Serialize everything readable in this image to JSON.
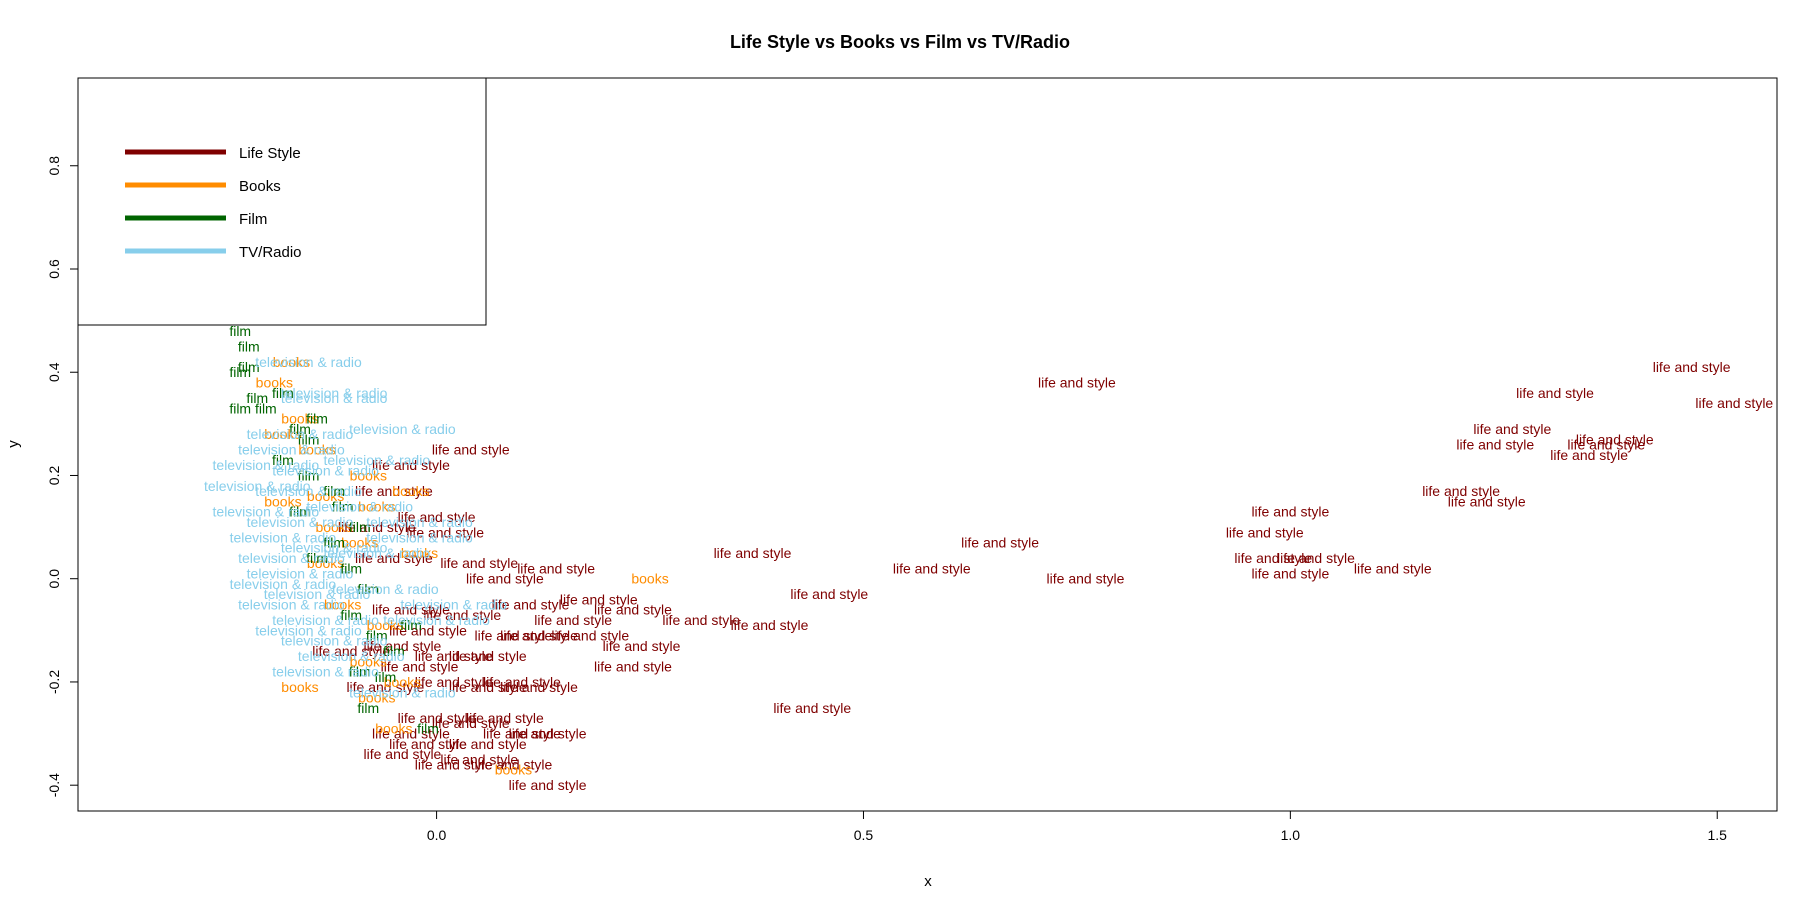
{
  "chart_data": {
    "type": "scatter",
    "title": "Life Style vs Books vs Film vs TV/Radio",
    "xlabel": "x",
    "ylabel": "y",
    "xlim": [
      -0.42,
      1.57
    ],
    "ylim": [
      -0.45,
      0.97
    ],
    "xticks": [
      0.0,
      0.5,
      1.0,
      1.5
    ],
    "yticks": [
      -0.4,
      -0.2,
      0.0,
      0.2,
      0.4,
      0.6,
      0.8
    ],
    "xtick_labels": [
      "0.0",
      "0.5",
      "1.0",
      "1.5"
    ],
    "ytick_labels": [
      "-0.4",
      "-0.2",
      "0.0",
      "0.2",
      "0.4",
      "0.6",
      "0.8"
    ],
    "grid": false,
    "legend": {
      "position": "top-left",
      "entries": [
        {
          "label": "Life Style",
          "color": "#7f0000"
        },
        {
          "label": "Books",
          "color": "#ff8c00"
        },
        {
          "label": "Film",
          "color": "#006400"
        },
        {
          "label": "TV/Radio",
          "color": "#87ceeb"
        }
      ]
    },
    "series": [
      {
        "name": "Life Style",
        "point_label": "life and style",
        "color": "#7f0000",
        "points": [
          [
            0.75,
            0.38
          ],
          [
            1.47,
            0.41
          ],
          [
            1.52,
            0.34
          ],
          [
            1.31,
            0.36
          ],
          [
            1.26,
            0.29
          ],
          [
            1.24,
            0.26
          ],
          [
            1.38,
            0.27
          ],
          [
            1.37,
            0.26
          ],
          [
            1.35,
            0.24
          ],
          [
            1.2,
            0.17
          ],
          [
            1.23,
            0.15
          ],
          [
            1.0,
            0.13
          ],
          [
            0.97,
            0.09
          ],
          [
            0.66,
            0.07
          ],
          [
            0.37,
            0.05
          ],
          [
            0.98,
            0.04
          ],
          [
            1.0,
            0.01
          ],
          [
            1.03,
            0.04
          ],
          [
            1.12,
            0.02
          ],
          [
            0.58,
            0.02
          ],
          [
            0.76,
            0.0
          ],
          [
            0.46,
            -0.03
          ],
          [
            0.39,
            -0.09
          ],
          [
            0.31,
            -0.08
          ],
          [
            0.24,
            -0.13
          ],
          [
            0.23,
            -0.17
          ],
          [
            0.44,
            -0.25
          ],
          [
            0.13,
            -0.4
          ],
          [
            0.04,
            0.25
          ],
          [
            -0.03,
            0.22
          ],
          [
            0.0,
            0.12
          ],
          [
            0.01,
            0.09
          ],
          [
            0.14,
            0.02
          ],
          [
            0.05,
            0.03
          ],
          [
            -0.05,
            0.04
          ],
          [
            0.08,
            0.0
          ],
          [
            0.11,
            -0.05
          ],
          [
            0.19,
            -0.04
          ],
          [
            0.23,
            -0.06
          ],
          [
            0.16,
            -0.08
          ],
          [
            0.12,
            -0.11
          ],
          [
            0.18,
            -0.11
          ],
          [
            0.09,
            -0.11
          ],
          [
            0.03,
            -0.07
          ],
          [
            -0.03,
            -0.06
          ],
          [
            -0.01,
            -0.1
          ],
          [
            0.06,
            -0.15
          ],
          [
            0.02,
            -0.15
          ],
          [
            -0.04,
            -0.13
          ],
          [
            0.1,
            -0.2
          ],
          [
            0.12,
            -0.21
          ],
          [
            0.06,
            -0.21
          ],
          [
            0.02,
            -0.2
          ],
          [
            -0.02,
            -0.17
          ],
          [
            -0.06,
            -0.21
          ],
          [
            0.08,
            -0.27
          ],
          [
            0.13,
            -0.3
          ],
          [
            0.1,
            -0.3
          ],
          [
            0.04,
            -0.28
          ],
          [
            0.0,
            -0.27
          ],
          [
            -0.03,
            -0.3
          ],
          [
            0.06,
            -0.32
          ],
          [
            -0.01,
            -0.32
          ],
          [
            0.09,
            -0.36
          ],
          [
            0.05,
            -0.35
          ],
          [
            0.02,
            -0.36
          ],
          [
            -0.04,
            -0.34
          ],
          [
            -0.1,
            -0.14
          ],
          [
            -0.05,
            0.17
          ],
          [
            -0.07,
            0.1
          ]
        ]
      },
      {
        "name": "Books",
        "point_label": "books",
        "color": "#ff8c00",
        "points": [
          [
            -0.17,
            0.42
          ],
          [
            -0.19,
            0.38
          ],
          [
            -0.16,
            0.31
          ],
          [
            -0.18,
            0.28
          ],
          [
            -0.14,
            0.25
          ],
          [
            -0.08,
            0.2
          ],
          [
            -0.03,
            0.17
          ],
          [
            -0.13,
            0.16
          ],
          [
            -0.18,
            0.15
          ],
          [
            -0.07,
            0.14
          ],
          [
            -0.12,
            0.1
          ],
          [
            0.25,
            0.0
          ],
          [
            -0.09,
            0.07
          ],
          [
            -0.02,
            0.05
          ],
          [
            -0.13,
            0.03
          ],
          [
            -0.11,
            -0.05
          ],
          [
            -0.06,
            -0.09
          ],
          [
            -0.16,
            -0.21
          ],
          [
            -0.07,
            -0.23
          ],
          [
            -0.05,
            -0.29
          ],
          [
            0.09,
            -0.37
          ],
          [
            -0.04,
            -0.2
          ],
          [
            -0.08,
            -0.16
          ]
        ]
      },
      {
        "name": "Film",
        "point_label": "film",
        "color": "#006400",
        "points": [
          [
            -0.23,
            0.48
          ],
          [
            -0.22,
            0.45
          ],
          [
            -0.22,
            0.41
          ],
          [
            -0.23,
            0.4
          ],
          [
            -0.23,
            0.33
          ],
          [
            -0.2,
            0.33
          ],
          [
            -0.21,
            0.35
          ],
          [
            -0.18,
            0.36
          ],
          [
            -0.14,
            0.31
          ],
          [
            -0.16,
            0.29
          ],
          [
            -0.15,
            0.27
          ],
          [
            -0.18,
            0.23
          ],
          [
            -0.15,
            0.2
          ],
          [
            -0.12,
            0.17
          ],
          [
            -0.11,
            0.14
          ],
          [
            -0.16,
            0.13
          ],
          [
            -0.09,
            0.1
          ],
          [
            -0.12,
            0.07
          ],
          [
            -0.14,
            0.04
          ],
          [
            -0.1,
            0.02
          ],
          [
            -0.08,
            -0.02
          ],
          [
            -0.1,
            -0.07
          ],
          [
            -0.07,
            -0.11
          ],
          [
            -0.05,
            -0.14
          ],
          [
            -0.09,
            -0.18
          ],
          [
            -0.06,
            -0.19
          ],
          [
            -0.08,
            -0.25
          ],
          [
            -0.01,
            -0.29
          ],
          [
            -0.03,
            -0.09
          ]
        ]
      },
      {
        "name": "TV/Radio",
        "point_label": "television & radio",
        "color": "#87ceeb",
        "points": [
          [
            -0.15,
            0.42
          ],
          [
            -0.12,
            0.36
          ],
          [
            -0.12,
            0.35
          ],
          [
            -0.04,
            0.29
          ],
          [
            -0.16,
            0.28
          ],
          [
            -0.17,
            0.25
          ],
          [
            -0.07,
            0.23
          ],
          [
            -0.2,
            0.22
          ],
          [
            -0.13,
            0.21
          ],
          [
            -0.21,
            0.18
          ],
          [
            -0.15,
            0.17
          ],
          [
            -0.09,
            0.14
          ],
          [
            -0.2,
            0.13
          ],
          [
            -0.16,
            0.11
          ],
          [
            -0.18,
            0.08
          ],
          [
            -0.12,
            0.06
          ],
          [
            -0.17,
            0.04
          ],
          [
            -0.16,
            0.01
          ],
          [
            -0.18,
            -0.01
          ],
          [
            -0.14,
            -0.03
          ],
          [
            -0.17,
            -0.05
          ],
          [
            -0.13,
            -0.08
          ],
          [
            -0.15,
            -0.1
          ],
          [
            -0.12,
            -0.12
          ],
          [
            -0.1,
            -0.15
          ],
          [
            -0.13,
            -0.18
          ],
          [
            -0.06,
            -0.02
          ],
          [
            -0.02,
            0.11
          ],
          [
            0.0,
            -0.08
          ],
          [
            0.02,
            -0.05
          ],
          [
            -0.04,
            -0.22
          ],
          [
            -0.02,
            0.08
          ],
          [
            -0.07,
            0.05
          ]
        ]
      }
    ]
  }
}
